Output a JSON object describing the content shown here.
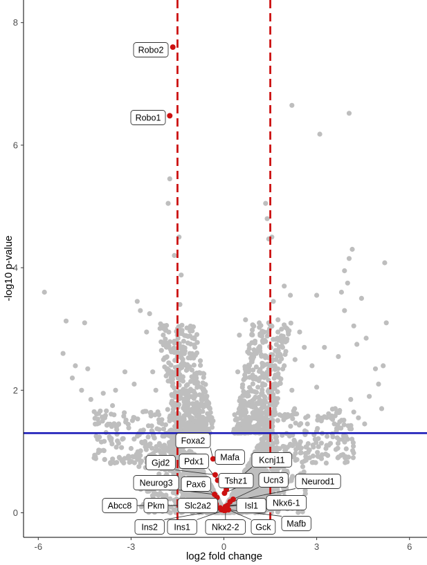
{
  "chart_data": {
    "type": "scatter",
    "title": "",
    "xlabel": "log2 fold change",
    "ylabel": "-log10 p-value",
    "xlim": [
      -6.3,
      6.3
    ],
    "ylim": [
      -0.4,
      8.6
    ],
    "x_ticks": [
      {
        "value": -6,
        "label": "-6"
      },
      {
        "value": -3,
        "label": "-3"
      },
      {
        "value": 0,
        "label": "0"
      },
      {
        "value": 3,
        "label": "3"
      },
      {
        "value": 6,
        "label": "6"
      }
    ],
    "y_ticks": [
      {
        "value": 0,
        "label": "0"
      },
      {
        "value": 2,
        "label": "2"
      },
      {
        "value": 4,
        "label": "4"
      },
      {
        "value": 6,
        "label": "6"
      },
      {
        "value": 8,
        "label": "8"
      }
    ],
    "grid": false,
    "colors": {
      "background_points": "#bebebe",
      "highlight_points": "#cc1111",
      "fold_change_lines": "#cc1111",
      "pvalue_line": "#1a1ab8"
    },
    "reference_lines": [
      {
        "orientation": "vertical",
        "value": -1.5,
        "style": "dashed",
        "color": "#cc1111"
      },
      {
        "orientation": "vertical",
        "value": 1.5,
        "style": "dashed",
        "color": "#cc1111"
      },
      {
        "orientation": "horizontal",
        "value": 1.3,
        "style": "solid",
        "color": "#1a1ab8"
      }
    ],
    "background_points": [
      [
        -5.8,
        3.6
      ],
      [
        -5.1,
        3.13
      ],
      [
        -4.5,
        3.1
      ],
      [
        -5.2,
        2.6
      ],
      [
        -4.8,
        2.4
      ],
      [
        -4.4,
        2.35
      ],
      [
        -4.9,
        2.2
      ],
      [
        -4.6,
        2.0
      ],
      [
        -4.3,
        1.85
      ],
      [
        -4.05,
        1.62
      ],
      [
        -3.9,
        1.95
      ],
      [
        -3.5,
        2.0
      ],
      [
        -3.85,
        1.55
      ],
      [
        -3.6,
        1.75
      ],
      [
        -3.4,
        1.45
      ],
      [
        -3.2,
        2.3
      ],
      [
        -2.9,
        2.1
      ],
      [
        -2.8,
        3.45
      ],
      [
        -2.4,
        3.25
      ],
      [
        -2.7,
        3.3
      ],
      [
        -2.5,
        2.95
      ],
      [
        -2.3,
        2.3
      ],
      [
        -2.1,
        1.6
      ],
      [
        -2.0,
        1.45
      ],
      [
        -1.8,
        5.05
      ],
      [
        -1.75,
        5.45
      ],
      [
        -1.6,
        4.2
      ],
      [
        -1.45,
        4.5
      ],
      [
        -1.38,
        3.88
      ],
      [
        -1.42,
        3.4
      ],
      [
        -1.95,
        2.5
      ],
      [
        -1.8,
        2.15
      ],
      [
        -1.6,
        2.8
      ],
      [
        -2.2,
        2.0
      ],
      [
        -1.3,
        2.8
      ],
      [
        -1.1,
        2.6
      ],
      [
        -0.9,
        2.25
      ],
      [
        -1.2,
        1.95
      ],
      [
        -1.0,
        1.7
      ],
      [
        -2.6,
        1.35
      ],
      [
        -3.0,
        1.05
      ],
      [
        -2.75,
        0.9
      ],
      [
        -1.5,
        1.55
      ],
      [
        -1.7,
        1.35
      ],
      [
        -1.25,
        1.45
      ],
      [
        1.35,
        5.05
      ],
      [
        1.4,
        4.8
      ],
      [
        1.45,
        4.47
      ],
      [
        1.55,
        4.5
      ],
      [
        1.6,
        3.45
      ],
      [
        1.45,
        3.1
      ],
      [
        1.75,
        3.15
      ],
      [
        1.3,
        2.95
      ],
      [
        1.75,
        2.35
      ],
      [
        1.9,
        2.7
      ],
      [
        1.95,
        2.4
      ],
      [
        2.15,
        3.55
      ],
      [
        1.95,
        3.7
      ],
      [
        2.3,
        2.5
      ],
      [
        2.2,
        2.0
      ],
      [
        2.45,
        2.95
      ],
      [
        2.6,
        2.7
      ],
      [
        2.85,
        2.4
      ],
      [
        2.2,
        6.65
      ],
      [
        3.1,
        6.18
      ],
      [
        4.05,
        6.52
      ],
      [
        4.15,
        4.3
      ],
      [
        4.05,
        4.15
      ],
      [
        3.9,
        3.95
      ],
      [
        4.0,
        3.75
      ],
      [
        4.45,
        3.5
      ],
      [
        3.8,
        3.6
      ],
      [
        3.0,
        3.55
      ],
      [
        3.25,
        2.7
      ],
      [
        3.7,
        2.55
      ],
      [
        3.9,
        3.3
      ],
      [
        4.2,
        3.05
      ],
      [
        4.3,
        2.75
      ],
      [
        4.6,
        2.85
      ],
      [
        5.25,
        3.1
      ],
      [
        5.2,
        4.08
      ],
      [
        4.9,
        2.35
      ],
      [
        5.0,
        2.1
      ],
      [
        5.15,
        2.4
      ],
      [
        4.7,
        1.9
      ],
      [
        5.1,
        1.7
      ],
      [
        4.35,
        1.55
      ],
      [
        4.1,
        1.85
      ],
      [
        3.6,
        1.7
      ],
      [
        3.0,
        2.05
      ],
      [
        3.15,
        1.5
      ],
      [
        2.7,
        1.45
      ],
      [
        4.55,
        1.45
      ],
      [
        3.3,
        1.05
      ],
      [
        3.85,
        0.95
      ],
      [
        4.0,
        1.2
      ],
      [
        2.95,
        1.2
      ],
      [
        2.3,
        1.15
      ],
      [
        1.8,
        1.6
      ],
      [
        0.7,
        3.15
      ],
      [
        0.5,
        2.9
      ],
      [
        0.45,
        2.3
      ],
      [
        0.8,
        2.3
      ],
      [
        1.05,
        2.6
      ],
      [
        0.6,
        2.05
      ],
      [
        1.1,
        2.05
      ],
      [
        -0.45,
        1.7
      ],
      [
        -0.7,
        1.85
      ],
      [
        -0.35,
        1.5
      ],
      [
        -0.6,
        1.4
      ],
      [
        0.35,
        1.6
      ],
      [
        0.55,
        1.45
      ],
      [
        0.95,
        1.75
      ]
    ],
    "highlighted_genes": [
      {
        "gene": "Robo2",
        "x": -1.65,
        "y": 7.6
      },
      {
        "gene": "Robo1",
        "x": -1.75,
        "y": 6.48
      },
      {
        "gene": "Foxa2",
        "x": -0.35,
        "y": 0.88
      },
      {
        "gene": "Mafa",
        "x": -0.05,
        "y": 0.83
      },
      {
        "gene": "Gjd2",
        "x": -0.28,
        "y": 0.62
      },
      {
        "gene": "Pdx1",
        "x": -0.2,
        "y": 0.53
      },
      {
        "gene": "Kcnj11",
        "x": 0.08,
        "y": 0.38
      },
      {
        "gene": "Neurog3",
        "x": -0.3,
        "y": 0.3
      },
      {
        "gene": "Pax6",
        "x": -0.22,
        "y": 0.25
      },
      {
        "gene": "Tshz1",
        "x": 0.02,
        "y": 0.32
      },
      {
        "gene": "Ucn3",
        "x": 0.3,
        "y": 0.22
      },
      {
        "gene": "Neurod1",
        "x": 0.2,
        "y": 0.18
      },
      {
        "gene": "Abcc8",
        "x": -0.35,
        "y": 0.12
      },
      {
        "gene": "Pkm",
        "x": -0.25,
        "y": 0.14
      },
      {
        "gene": "Slc2a2",
        "x": -0.12,
        "y": 0.08
      },
      {
        "gene": "Isl1",
        "x": 0.05,
        "y": 0.1
      },
      {
        "gene": "Nkx6-1",
        "x": 0.12,
        "y": 0.12
      },
      {
        "gene": "Ins2",
        "x": -0.08,
        "y": 0.05
      },
      {
        "gene": "Ins1",
        "x": 0.0,
        "y": 0.04
      },
      {
        "gene": "Nkx2-2",
        "x": 0.05,
        "y": 0.04
      },
      {
        "gene": "Gck",
        "x": 0.1,
        "y": 0.06
      },
      {
        "gene": "Mafb",
        "x": 0.15,
        "y": 0.05
      }
    ]
  }
}
